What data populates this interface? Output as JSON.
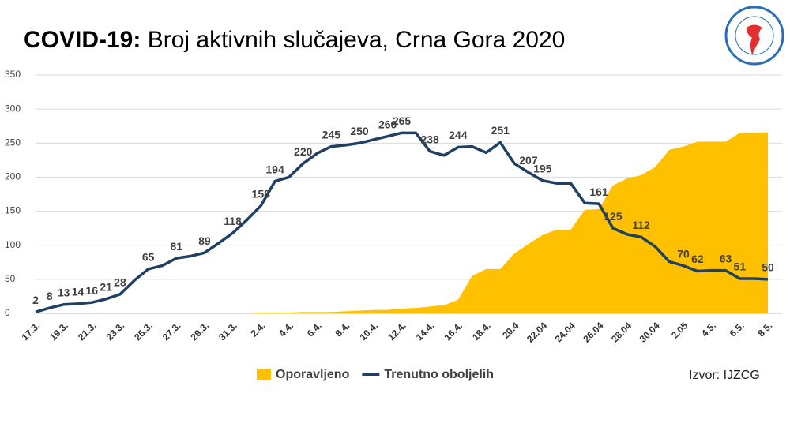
{
  "chart_data": {
    "type": "area_line",
    "title_lead": "COVID-19:",
    "title": "Broj aktivnih slučajeva, Crna Gora 2020",
    "source": "Izvor: IJZCG",
    "categories": [
      "17.3.",
      null,
      "19.3.",
      null,
      "21.3.",
      null,
      "23.3.",
      null,
      "25.3.",
      null,
      "27.3.",
      null,
      "29.3.",
      null,
      "31.3.",
      null,
      "2.4.",
      null,
      "4.4.",
      null,
      "6.4.",
      null,
      "8.4.",
      null,
      "10.4.",
      null,
      "12.4.",
      null,
      "14.4.",
      null,
      "16.4.",
      null,
      "18.4.",
      null,
      "20.4",
      null,
      "22.04",
      null,
      "24.04",
      null,
      "26.04",
      null,
      "28.04",
      null,
      "30.04",
      null,
      "2.05",
      null,
      "4.5.",
      null,
      "6.5.",
      null,
      "8.5."
    ],
    "series": [
      {
        "name": "Oporavljeno",
        "color": "#ffc000",
        "kind": "area",
        "values": [
          0,
          0,
          0,
          0,
          0,
          0,
          0,
          0,
          0,
          0,
          0,
          0,
          0,
          0,
          0,
          0,
          1,
          1,
          1,
          2,
          2,
          2,
          3,
          4,
          5,
          5,
          7,
          8,
          10,
          12,
          20,
          55,
          65,
          65,
          88,
          102,
          115,
          123,
          123,
          152,
          153,
          188,
          198,
          203,
          215,
          240,
          245,
          252,
          252,
          252,
          265,
          265,
          266
        ]
      },
      {
        "name": "Trenutno oboljelih",
        "color": "#1f3f63",
        "kind": "line",
        "values": [
          2,
          8,
          13,
          14,
          16,
          21,
          28,
          48,
          65,
          70,
          81,
          84,
          89,
          103,
          118,
          137,
          158,
          194,
          200,
          220,
          235,
          245,
          247,
          250,
          255,
          260,
          265,
          265,
          238,
          232,
          244,
          245,
          236,
          251,
          220,
          207,
          195,
          191,
          191,
          162,
          161,
          125,
          116,
          112,
          98,
          76,
          70,
          62,
          63,
          63,
          51,
          51,
          50
        ],
        "value_labels": [
          "2",
          "8",
          "13",
          "14",
          "16",
          "21",
          "28",
          null,
          "65",
          null,
          "81",
          null,
          "89",
          null,
          "118",
          null,
          "158",
          "194",
          null,
          "220",
          null,
          "245",
          null,
          "250",
          null,
          "260",
          "265",
          null,
          "238",
          null,
          "244",
          null,
          null,
          "251",
          null,
          "207",
          "195",
          null,
          null,
          null,
          "161",
          "125",
          null,
          "112",
          null,
          null,
          "70",
          "62",
          null,
          "63",
          "51",
          null,
          "50"
        ]
      }
    ],
    "ylim": [
      0,
      350
    ],
    "yticks": [
      0,
      50,
      100,
      150,
      200,
      250,
      300,
      350
    ],
    "grid": true
  }
}
